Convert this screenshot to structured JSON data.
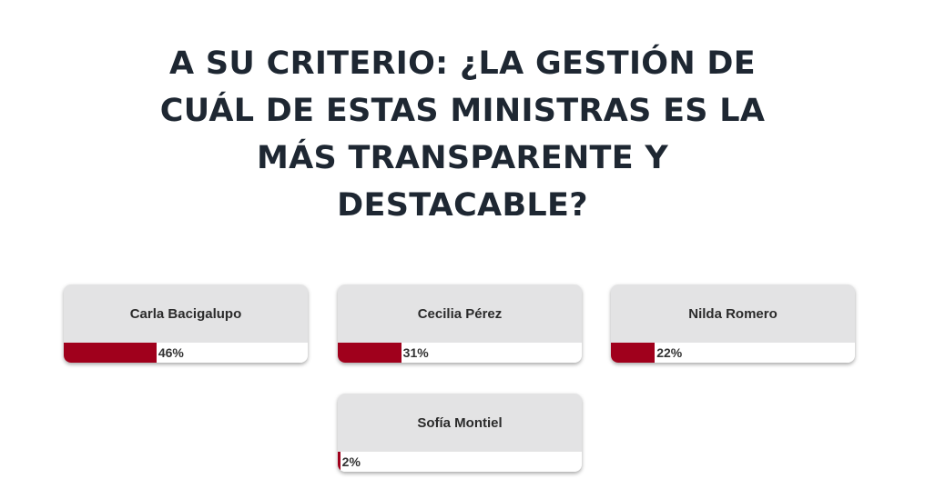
{
  "poll": {
    "title": "A SU CRITERIO: ¿LA GESTIÓN DE CUÁL DE ESTAS MINISTRAS ES LA MÁS TRANSPARENTE Y DESTACABLE?",
    "accent_color": "#a0001c",
    "options": [
      {
        "name": "Carla Bacigalupo",
        "percent_label": "46%",
        "percent": 38
      },
      {
        "name": "Cecilia Pérez",
        "percent_label": "31%",
        "percent": 26
      },
      {
        "name": "Nilda Romero",
        "percent_label": "22%",
        "percent": 18
      },
      {
        "name": "Sofía Montiel",
        "percent_label": "2%",
        "percent": 1
      }
    ]
  }
}
